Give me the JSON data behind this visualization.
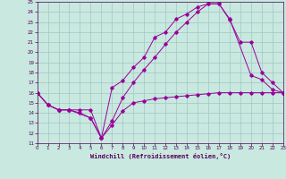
{
  "xlabel": "Windchill (Refroidissement éolien,°C)",
  "xlim": [
    0,
    23
  ],
  "ylim": [
    11,
    25
  ],
  "xticks": [
    0,
    1,
    2,
    3,
    4,
    5,
    6,
    7,
    8,
    9,
    10,
    11,
    12,
    13,
    14,
    15,
    16,
    17,
    18,
    19,
    20,
    21,
    22,
    23
  ],
  "yticks": [
    11,
    12,
    13,
    14,
    15,
    16,
    17,
    18,
    19,
    20,
    21,
    22,
    23,
    24,
    25
  ],
  "bg_color": "#c8e8e0",
  "grid_color": "#a0c8c0",
  "line_color": "#990099",
  "line1_x": [
    0,
    1,
    2,
    3,
    4,
    5,
    6,
    7,
    8,
    9,
    10,
    11,
    12,
    13,
    14,
    15,
    16,
    17,
    18,
    19,
    20,
    21,
    22,
    23
  ],
  "line1_y": [
    16.0,
    14.8,
    14.3,
    14.3,
    14.3,
    14.3,
    11.5,
    12.8,
    14.2,
    15.0,
    15.2,
    15.4,
    15.5,
    15.6,
    15.7,
    15.8,
    15.9,
    16.0,
    16.0,
    16.0,
    16.0,
    16.0,
    16.0,
    16.0
  ],
  "line2_x": [
    0,
    1,
    2,
    3,
    5,
    6,
    7,
    8,
    9,
    10,
    11,
    12,
    13,
    14,
    15,
    16,
    17,
    18,
    20,
    21,
    22,
    23
  ],
  "line2_y": [
    16.0,
    14.8,
    14.3,
    14.3,
    13.5,
    11.5,
    16.5,
    17.2,
    18.5,
    19.5,
    21.5,
    22.0,
    23.3,
    23.8,
    24.5,
    24.8,
    24.8,
    23.3,
    17.7,
    17.3,
    16.3,
    16.0
  ],
  "line3_x": [
    0,
    1,
    2,
    3,
    4,
    5,
    6,
    7,
    8,
    9,
    10,
    11,
    12,
    13,
    14,
    15,
    16,
    17,
    18,
    19,
    20,
    21,
    22,
    23
  ],
  "line3_y": [
    16.0,
    14.8,
    14.3,
    14.3,
    14.0,
    13.5,
    11.5,
    13.2,
    15.5,
    17.0,
    18.3,
    19.5,
    20.8,
    22.0,
    23.0,
    24.0,
    24.8,
    24.8,
    23.2,
    21.0,
    21.0,
    18.0,
    17.0,
    16.0
  ]
}
